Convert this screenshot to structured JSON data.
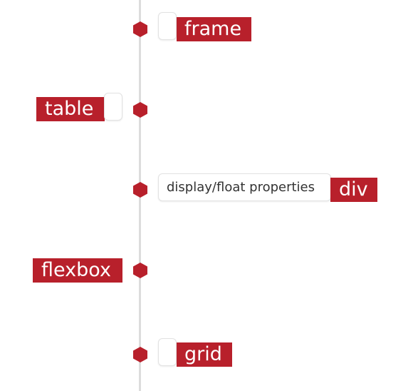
{
  "timeline": {
    "events": [
      {
        "tag": "frame",
        "note": ""
      },
      {
        "tag": "table",
        "note": ""
      },
      {
        "tag": "div",
        "note": "display/float properties"
      },
      {
        "tag": "flexbox",
        "note": ""
      },
      {
        "tag": "grid",
        "note": ""
      }
    ]
  },
  "colors": {
    "accent": "#b8202b",
    "line": "#dcdcdc"
  }
}
